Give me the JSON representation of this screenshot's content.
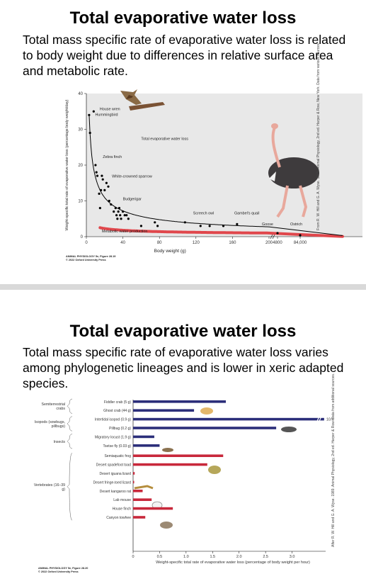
{
  "slides": [
    {
      "title": "Total evaporative water loss",
      "subtitle": "Total mass specific rate of evaporative water loss is related to body weight due to differences in relative surface area and metabolic rate.",
      "credit_line1": "ANIMAL PHYSIOLOGY 5e, Figure 28.19",
      "credit_line2": "© 2022 Oxford University Press",
      "vertical_credit": "From R. W. Hill and G. A. Wyse. 1989. Animal Physiology, 2nd ed. Harper & Row, New York. Data from various sources."
    },
    {
      "title": "Total evaporative water loss",
      "subtitle": "Total mass specific rate of evaporative water loss varies among phylogenetic lineages and is lower in xeric adapted species.",
      "credit_line1": "ANIMAL PHYSIOLOGY 5e, Figure 28.20",
      "credit_line2": "© 2022 Oxford University Press",
      "vertical_credit": "After R. W. Hill and G. A. Wyse. 1989. Animal Physiology, 2nd ed. Harper & Row. Data from additional sources."
    }
  ],
  "chart_data": [
    {
      "type": "scatter",
      "xlabel": "Body weight (g)",
      "ylabel": "Weight-specific total rate of evaporative water loss (percentage body weight/day)",
      "xlim": [
        0,
        200
      ],
      "ylim": [
        0,
        40
      ],
      "x_ticks": [
        "0",
        "40",
        "80",
        "120",
        "160",
        "200"
      ],
      "x_break_ticks": [
        "4800",
        "84,000"
      ],
      "y_ticks": [
        "0",
        "10",
        "20",
        "30",
        "40"
      ],
      "points": [
        {
          "x": 3,
          "y": 34
        },
        {
          "x": 4,
          "y": 29
        },
        {
          "x": 8,
          "y": 35
        },
        {
          "x": 10,
          "y": 20
        },
        {
          "x": 11,
          "y": 18
        },
        {
          "x": 12,
          "y": 17
        },
        {
          "x": 14,
          "y": 12
        },
        {
          "x": 15,
          "y": 8
        },
        {
          "x": 16,
          "y": 13
        },
        {
          "x": 17,
          "y": 17
        },
        {
          "x": 18,
          "y": 16
        },
        {
          "x": 20,
          "y": 13
        },
        {
          "x": 22,
          "y": 15
        },
        {
          "x": 24,
          "y": 14
        },
        {
          "x": 25,
          "y": 10
        },
        {
          "x": 27,
          "y": 9
        },
        {
          "x": 30,
          "y": 7
        },
        {
          "x": 32,
          "y": 8
        },
        {
          "x": 33,
          "y": 6
        },
        {
          "x": 34,
          "y": 5
        },
        {
          "x": 35,
          "y": 7
        },
        {
          "x": 36,
          "y": 8
        },
        {
          "x": 37,
          "y": 6
        },
        {
          "x": 38,
          "y": 5
        },
        {
          "x": 40,
          "y": 7
        },
        {
          "x": 42,
          "y": 6
        },
        {
          "x": 44,
          "y": 6
        },
        {
          "x": 46,
          "y": 5
        },
        {
          "x": 60,
          "y": 3
        },
        {
          "x": 75,
          "y": 4
        },
        {
          "x": 78,
          "y": 3
        },
        {
          "x": 108,
          "y": 4
        },
        {
          "x": 125,
          "y": 3
        },
        {
          "x": 135,
          "y": 3
        },
        {
          "x": 150,
          "y": 3
        },
        {
          "x": 165,
          "y": 3.5
        }
      ],
      "break_points": [
        {
          "x": "4800",
          "y": 1
        },
        {
          "x": "84,000",
          "y": 0.4
        }
      ],
      "curves": [
        {
          "name": "Total evaporative water loss",
          "color": "#000000"
        },
        {
          "name": "Metabolic water production",
          "color": "#e0474c"
        }
      ],
      "annotations": [
        "House wren",
        "Hummingbird",
        "Total evaporative water loss",
        "Zebra finch",
        "White-crowned sparrow",
        "Budgerigar",
        "Screech owl",
        "Gambel's quail",
        "Goose",
        "Ostrich",
        "Metabolic water production"
      ]
    },
    {
      "type": "bar",
      "orientation": "horizontal",
      "xlabel": "Weight-specific total rate of evaporative water loss (percentage of body weight per hour)",
      "xlim": [
        0,
        3.5
      ],
      "x_ticks": [
        "0",
        "0.5",
        "1.0",
        "1.5",
        "2.0",
        "2.5",
        "3.0"
      ],
      "groups": [
        {
          "label": "Semiterrestrial crabs",
          "color": "#2b2e7a",
          "items": [
            {
              "label": "Fiddler crab (5 g)",
              "value": 1.75
            },
            {
              "label": "Ghost crab (44 g)",
              "value": 1.15
            }
          ]
        },
        {
          "label": "Isopods (sowbugs, pillbugs)",
          "color": "#2b2e7a",
          "items": [
            {
              "label": "Intertidal isopod (0.9 g)",
              "value": 10.6,
              "value_label": "10.6"
            },
            {
              "label": "Pillbug (0.2 g)",
              "value": 2.7
            }
          ]
        },
        {
          "label": "Insects",
          "color": "#2b2e7a",
          "items": [
            {
              "label": "Migratory locust (1.9 g)",
              "value": 0.4
            },
            {
              "label": "Tsetse fly (0.03 g)",
              "value": 0.5
            }
          ]
        },
        {
          "label": "Vertebrates (16–39 g)",
          "color": "#c8283b",
          "items": [
            {
              "label": "Semiaquatic frog",
              "value": 1.7
            },
            {
              "label": "Desert spadefoot toad",
              "value": 1.4
            },
            {
              "label": "Desert iguana lizard",
              "value": 0.03
            },
            {
              "label": "Desert fringe-toed lizard",
              "value": 0.02
            },
            {
              "label": "Desert kangaroo rat",
              "value": 0.18
            },
            {
              "label": "Lab mouse",
              "value": 0.35
            },
            {
              "label": "House finch",
              "value": 0.75
            },
            {
              "label": "Canyon towhee",
              "value": 0.23
            }
          ]
        }
      ]
    }
  ]
}
